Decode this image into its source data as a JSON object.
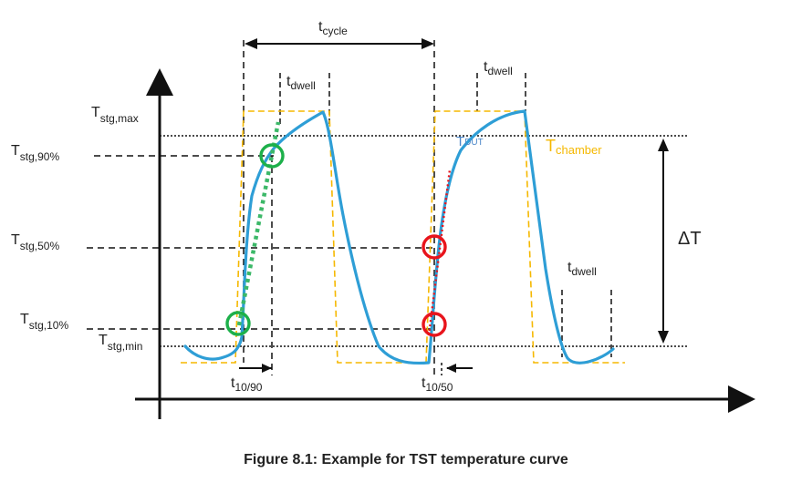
{
  "caption": "Figure 8.1: Example for TST temperature curve",
  "labels": {
    "t_cycle_main": "t",
    "t_cycle_sub": "cycle",
    "t_dwell_main": "t",
    "t_dwell_sub": "dwell",
    "t_stg_max_main": "T",
    "t_stg_max_sub": "stg,max",
    "t_stg_90_main": "T",
    "t_stg_90_sub": "stg,90%",
    "t_stg_50_main": "T",
    "t_stg_50_sub": "stg,50%",
    "t_stg_10_main": "T",
    "t_stg_10_sub": "stg,10%",
    "t_stg_min_main": "T",
    "t_stg_min_sub": "stg,min",
    "t_dut_main": "T",
    "t_dut_sub": "DUT",
    "t_chamber_main": "T",
    "t_chamber_sub": "chamber",
    "delta_t": "ΔT",
    "t_10_90_main": "t",
    "t_10_90_sub": "10/90",
    "t_10_50_main": "t",
    "t_10_50_sub": "10/50"
  },
  "colors": {
    "dut_curve": "#2e9ed6",
    "chamber_curve": "#f5b800",
    "marker_green": "#1db04a",
    "marker_red": "#e8141c",
    "tangent_green": "#3cb868",
    "tangent_red": "#e8141c",
    "t_dut_label": "#4a86c8",
    "t_chamber_label": "#f5b800",
    "axis": "#111111"
  }
}
